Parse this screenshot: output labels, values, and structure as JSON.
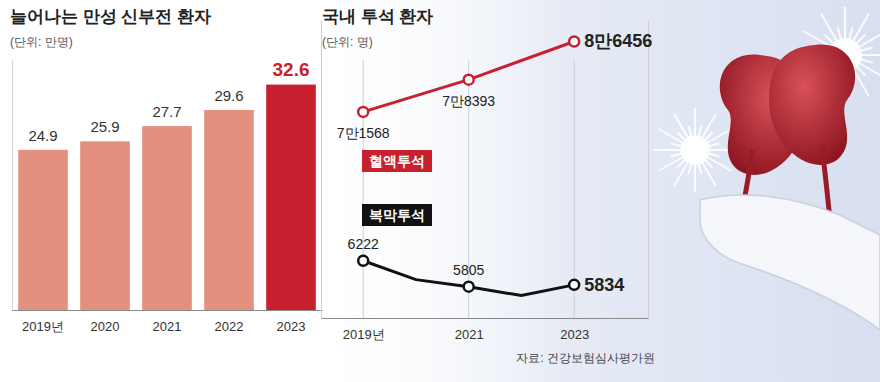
{
  "source": "자료: 건강보험심사평가원",
  "chart_data": [
    {
      "type": "bar",
      "title": "늘어나는 만성 신부전 환자",
      "subtitle": "(단위: 만명)",
      "categories": [
        "2019년",
        "2020",
        "2021",
        "2022",
        "2023"
      ],
      "values": [
        24.9,
        25.9,
        27.7,
        29.6,
        32.6
      ],
      "colors": [
        "#e3907e",
        "#e3907e",
        "#e3907e",
        "#e3907e",
        "#c8202f"
      ],
      "ylim": [
        6,
        35.5
      ],
      "yticks": [],
      "data_labels": true,
      "tick_labels": "x"
    },
    {
      "type": "line",
      "title": "국내 투석 환자",
      "subtitle": "(단위: 명)",
      "x": [
        2019,
        2020,
        2021,
        2022,
        2023
      ],
      "xlim": [
        2018.2,
        2024.4
      ],
      "xticks": [
        {
          "value": 2019,
          "label": "2019년"
        },
        2021,
        2023
      ],
      "ylim": [
        28000,
        91000
      ],
      "yticks": [],
      "y2lim": [
        5300,
        10100
      ],
      "y2ticks": [],
      "grid": true,
      "data_labels": true,
      "tick_labels": "x",
      "series": [
        {
          "name": "혈액투석",
          "color": "#c8202f",
          "marker": "circle",
          "x": [
            2019,
            2021,
            2023
          ],
          "values": [
            71568,
            78393,
            86456
          ],
          "value_labels": [
            "7만1568",
            "7만8393",
            "8만6456"
          ]
        },
        {
          "name": "복막투석",
          "color": "#111111",
          "marker": "circle",
          "axis": "y2",
          "values": [
            6222,
            5918,
            5805,
            5661,
            5834
          ],
          "value_labels": [
            "6222",
            null,
            "5805",
            null,
            "5834"
          ]
        }
      ]
    }
  ]
}
